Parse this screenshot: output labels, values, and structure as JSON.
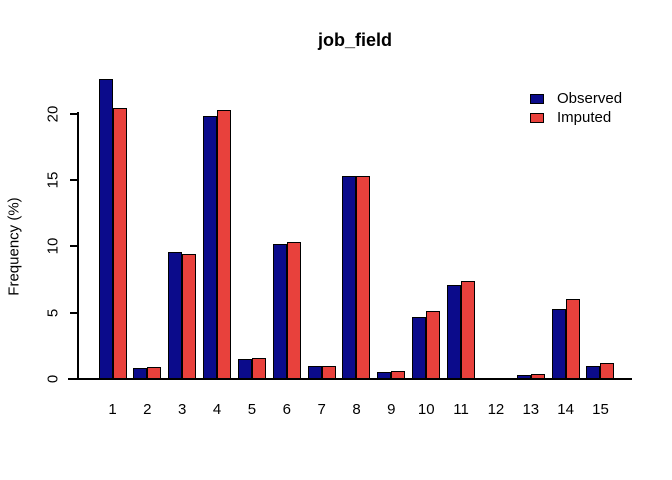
{
  "title": "job_field",
  "y_axis_title": "Frequency (%)",
  "legend": {
    "items": [
      {
        "label": "Observed",
        "color": "#0B0B8B"
      },
      {
        "label": "Imputed",
        "color": "#E8413C"
      }
    ]
  },
  "chart_data": {
    "type": "bar",
    "title": "job_field",
    "xlabel": "",
    "ylabel": "Frequency (%)",
    "categories": [
      "1",
      "2",
      "3",
      "4",
      "5",
      "6",
      "7",
      "8",
      "9",
      "10",
      "11",
      "12",
      "13",
      "14",
      "15"
    ],
    "series": [
      {
        "name": "Observed",
        "color": "#0B0B8B",
        "values": [
          22.6,
          0.8,
          9.6,
          19.8,
          1.5,
          10.2,
          1.0,
          15.3,
          0.5,
          4.7,
          7.1,
          0.1,
          0.3,
          5.3,
          1.0
        ]
      },
      {
        "name": "Imputed",
        "color": "#E8413C",
        "values": [
          20.4,
          0.9,
          9.4,
          20.3,
          1.6,
          10.3,
          1.0,
          15.3,
          0.6,
          5.1,
          7.4,
          0.1,
          0.4,
          6.0,
          1.2
        ]
      }
    ],
    "ylim": [
      0,
      23.5
    ],
    "yticks": [
      0,
      5,
      10,
      15,
      20
    ],
    "bar_border_color": "#000000",
    "axis_color": "#000000",
    "grid": false,
    "legend_position": "top-right"
  }
}
